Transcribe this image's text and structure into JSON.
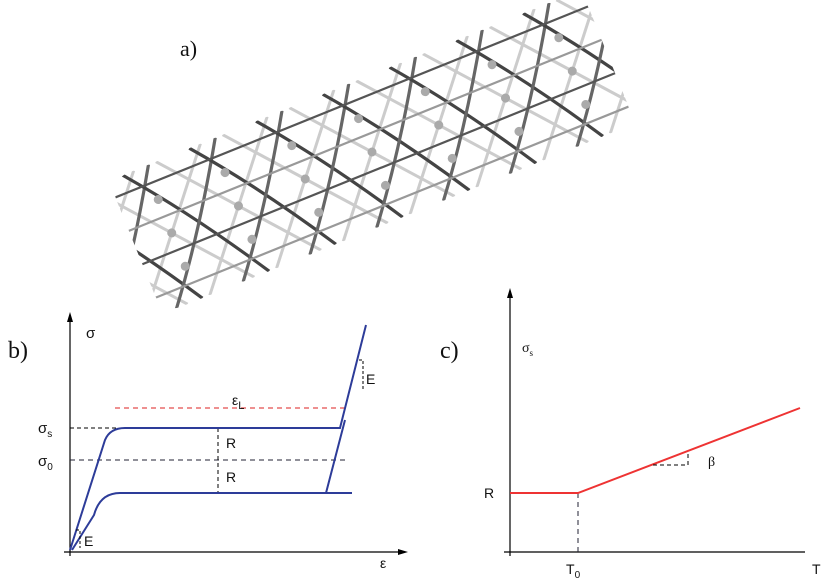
{
  "panel_a": {
    "label": "a)"
  },
  "panel_b": {
    "label": "b)",
    "y_axis": "σ",
    "x_axis": "ε",
    "sigma_s": {
      "main": "σ",
      "sub": "s"
    },
    "sigma_0": {
      "main": "σ",
      "sub": "0"
    },
    "epsilon_L": {
      "main": "ε",
      "sub": "L"
    },
    "modulus_top": "E",
    "modulus_bottom": "E",
    "r_upper": "R",
    "r_lower": "R"
  },
  "panel_c": {
    "label": "c)",
    "y_axis": {
      "main": "σ",
      "sub": "s"
    },
    "x_axis": "T",
    "r_label": "R",
    "t0": {
      "main": "T",
      "sub": "0"
    },
    "slope": "β"
  }
}
